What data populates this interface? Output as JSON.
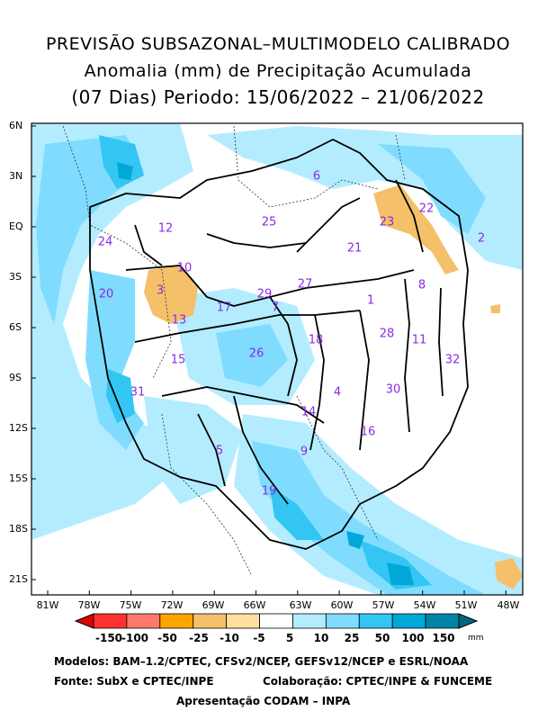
{
  "title": {
    "line1": "PREVISÃO SUBSAZONAL–MULTIMODELO CALIBRADO",
    "line2": "Anomalia (mm) de Precipitação Acumulada",
    "line3": "(07 Dias) Periodo: 15/06/2022 – 21/06/2022"
  },
  "axes": {
    "lat_labels": [
      "6N",
      "3N",
      "EQ",
      "3S",
      "6S",
      "9S",
      "12S",
      "15S",
      "18S",
      "21S"
    ],
    "lon_labels": [
      "81W",
      "78W",
      "75W",
      "72W",
      "69W",
      "66W",
      "63W",
      "60W",
      "57W",
      "54W",
      "51W",
      "48W"
    ]
  },
  "basins": [
    "1",
    "2",
    "3",
    "4",
    "5",
    "6",
    "7",
    "8",
    "9",
    "10",
    "11",
    "12",
    "13",
    "14",
    "15",
    "16",
    "17",
    "18",
    "19",
    "20",
    "21",
    "22",
    "23",
    "24",
    "25",
    "26",
    "27",
    "28",
    "29",
    "30",
    "31",
    "32"
  ],
  "colorbar": {
    "ticks": [
      "-150",
      "-100",
      "-50",
      "-25",
      "-10",
      "-5",
      "5",
      "10",
      "25",
      "50",
      "100",
      "150"
    ],
    "colors": [
      "#e00000",
      "#ff3030",
      "#ff7a6a",
      "#ffa500",
      "#f5c06a",
      "#ffe0a0",
      "#ffffff",
      "#b4ecff",
      "#7fdcff",
      "#33c6f3",
      "#00a8d8",
      "#0085a8",
      "#006680"
    ],
    "unit": "mm"
  },
  "credits": {
    "line1": "Modelos: BAM–1.2/CPTEC, CFSv2/NCEP, GEFSv12/NCEP e ESRL/NOAA",
    "line2_left": "Fonte: SubX e CPTEC/INPE",
    "line2_right": "Colaboração: CPTEC/INPE & FUNCEME",
    "line3": "Apresentação CODAM – INPA"
  }
}
